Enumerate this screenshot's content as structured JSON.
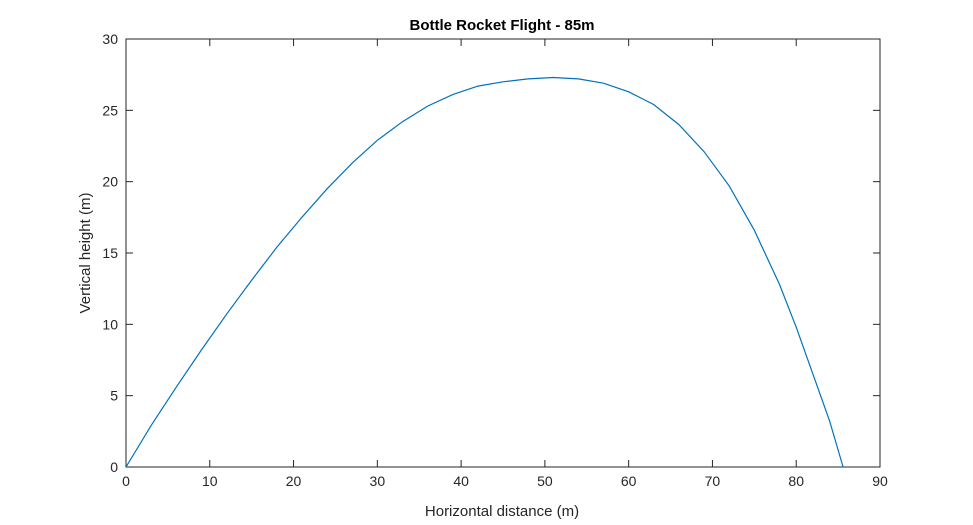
{
  "chart_data": {
    "type": "line",
    "title": "Bottle Rocket Flight - 85m",
    "xlabel": "Horizontal distance (m)",
    "ylabel": "Vertical height (m)",
    "xlim": [
      0,
      90
    ],
    "ylim": [
      0,
      30
    ],
    "xticks": [
      0,
      10,
      20,
      30,
      40,
      50,
      60,
      70,
      80,
      90
    ],
    "yticks": [
      0,
      5,
      10,
      15,
      20,
      25,
      30
    ],
    "grid": false,
    "legend": "none",
    "series": [
      {
        "color": "#0072bd",
        "x": [
          0,
          3,
          6,
          9,
          12,
          15,
          18,
          21,
          24,
          27,
          30,
          33,
          36,
          39,
          42,
          45,
          48,
          51,
          54,
          57,
          60,
          63,
          66,
          69,
          72,
          75,
          78,
          80,
          82,
          84,
          85.6
        ],
        "y": [
          0,
          2.9,
          5.6,
          8.2,
          10.7,
          13.1,
          15.4,
          17.5,
          19.5,
          21.3,
          22.9,
          24.2,
          25.3,
          26.1,
          26.7,
          27.0,
          27.2,
          27.3,
          27.2,
          26.9,
          26.3,
          25.4,
          24.0,
          22.1,
          19.7,
          16.6,
          12.8,
          9.8,
          6.5,
          3.2,
          0
        ]
      }
    ]
  }
}
